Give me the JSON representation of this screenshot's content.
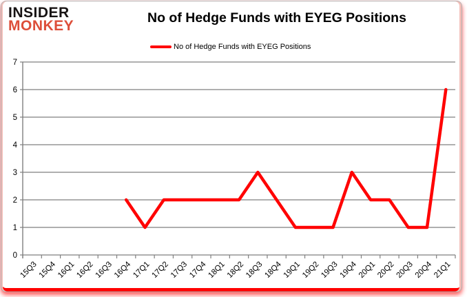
{
  "logo": {
    "line1": "INSIDER",
    "line2": "MONKEY",
    "line1_color": "#171313",
    "line2_color": "#dd4e39"
  },
  "header": {
    "title": "No of Hedge Funds with EYEG Positions"
  },
  "legend": {
    "label": "No of Hedge Funds with EYEG Positions",
    "line_color": "#ff0000"
  },
  "chart_data": {
    "type": "line",
    "title": "No of Hedge Funds with EYEG Positions",
    "categories": [
      "15Q3",
      "15Q4",
      "16Q1",
      "16Q2",
      "16Q3",
      "16Q4",
      "17Q1",
      "17Q2",
      "17Q3",
      "17Q4",
      "18Q1",
      "18Q2",
      "18Q3",
      "18Q4",
      "19Q1",
      "19Q2",
      "19Q3",
      "19Q4",
      "20Q1",
      "20Q2",
      "20Q3",
      "20Q4",
      "21Q1"
    ],
    "series": [
      {
        "name": "No of Hedge Funds with EYEG Positions",
        "color": "#ff0000",
        "values": [
          null,
          null,
          null,
          null,
          null,
          2,
          1,
          2,
          2,
          2,
          2,
          2,
          3,
          2,
          1,
          1,
          1,
          3,
          2,
          2,
          1,
          1,
          6
        ]
      }
    ],
    "xlabel": "",
    "ylabel": "",
    "ylim": [
      0,
      7
    ],
    "ytick_interval": 1,
    "grid": true,
    "grid_color": "#7f7f7f",
    "axis_color": "#7f7f7f",
    "tick_label_color": "#000000",
    "legend_position": "top"
  }
}
